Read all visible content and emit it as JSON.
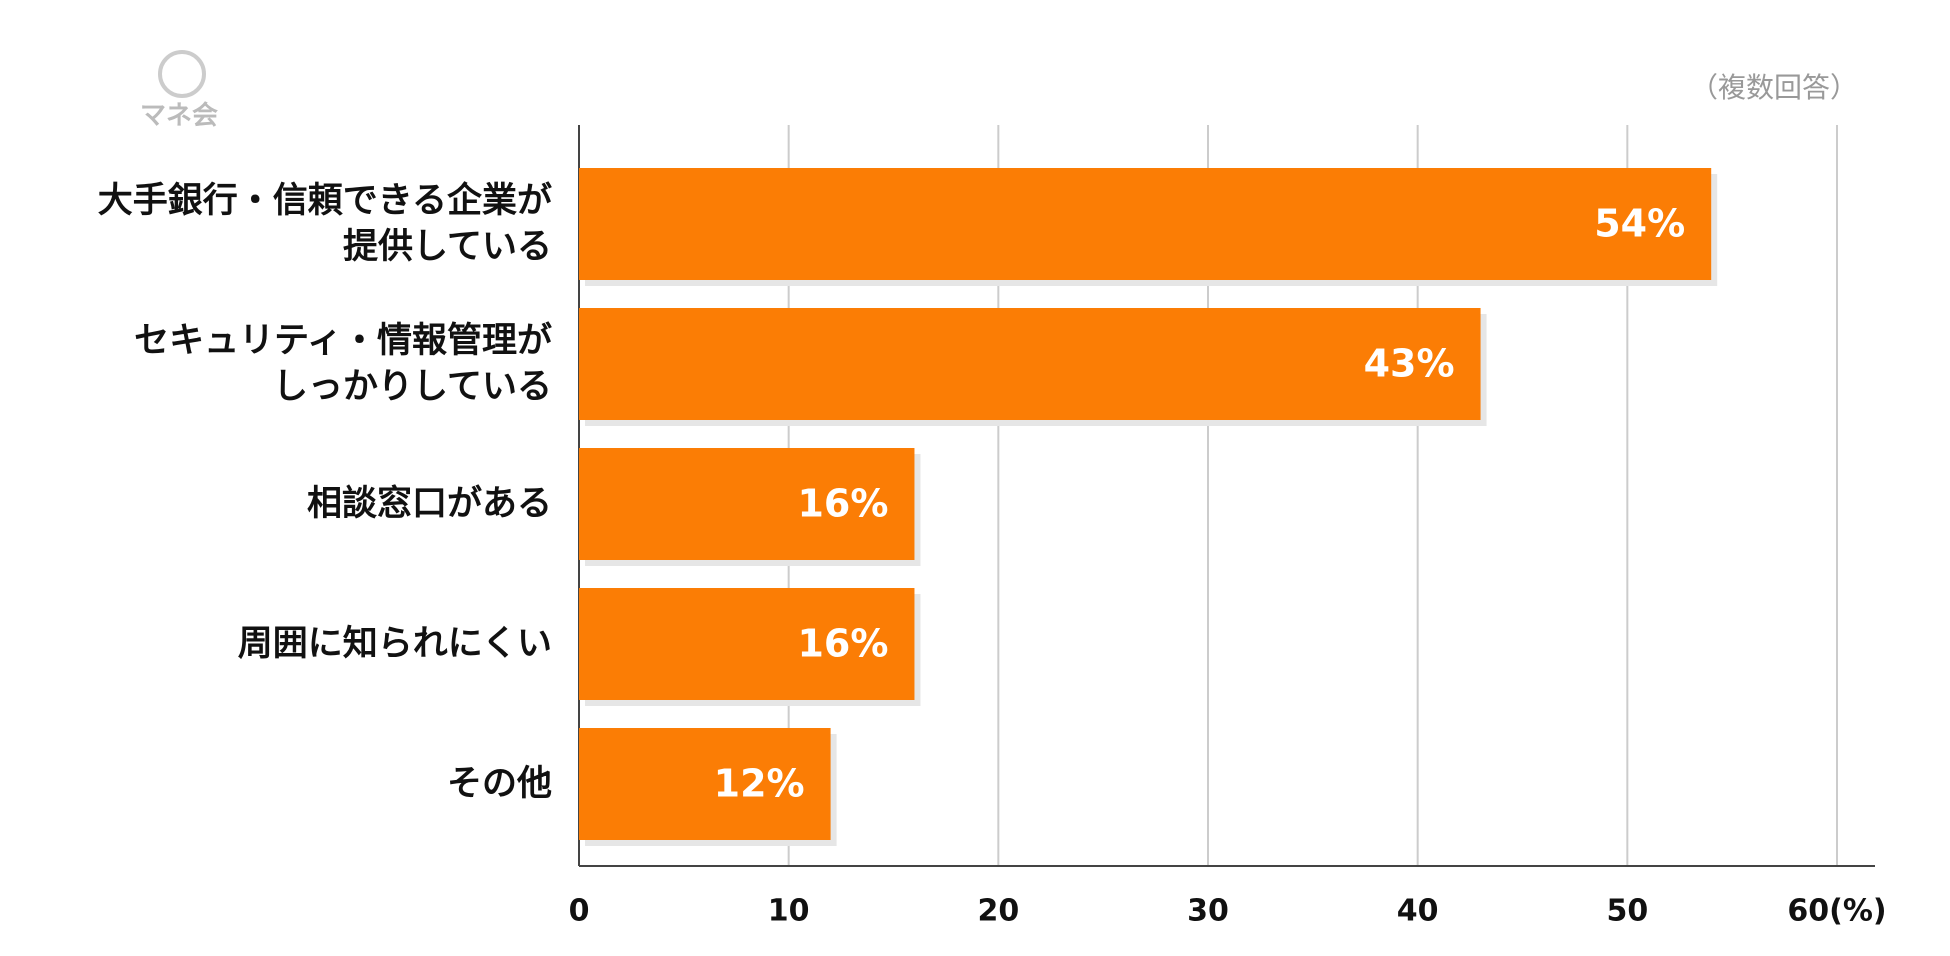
{
  "chart_data": {
    "type": "hbar",
    "logo": "マネ会",
    "annotation": "（複数回答）",
    "categories": [
      "大手銀行・信頼できる企業が\n提供している",
      "セキュリティ・情報管理が\nしっかりしている",
      "相談窓口がある",
      "周囲に知られにくい",
      "その他"
    ],
    "values": [
      54,
      43,
      16,
      16,
      12
    ],
    "value_labels": [
      "54%",
      "43%",
      "16%",
      "16%",
      "12%"
    ],
    "color": "#fb7d05",
    "xlim": [
      0,
      60
    ],
    "xticks": [
      0,
      10,
      20,
      30,
      40,
      50,
      {
        "value": 60,
        "label": "60(%)"
      }
    ],
    "grid": true
  }
}
